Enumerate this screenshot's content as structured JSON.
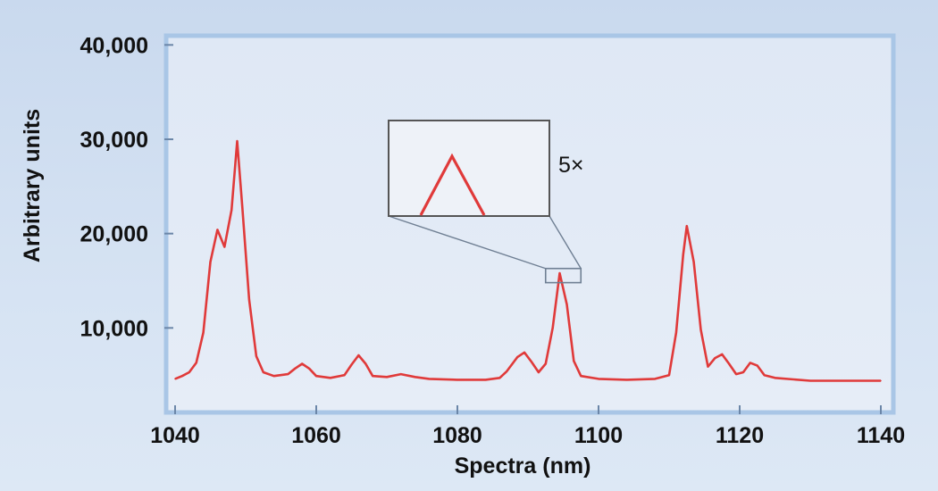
{
  "chart_data": {
    "type": "line",
    "title": "",
    "xlabel": "Spectra (nm)",
    "ylabel": "Arbitrary units",
    "xlim": [
      1040,
      1140
    ],
    "ylim": [
      0,
      40000
    ],
    "x_ticks": [
      1040,
      1060,
      1080,
      1100,
      1120,
      1140
    ],
    "x_tick_labels": [
      "1040",
      "1060",
      "1080",
      "1100",
      "1120",
      "1140"
    ],
    "y_ticks": [
      10000,
      20000,
      30000,
      40000
    ],
    "y_tick_labels": [
      "10,000",
      "20,000",
      "30,000",
      "40,000"
    ],
    "grid": false,
    "legend": "none",
    "annotation": {
      "label": "5×",
      "zoom_x": [
        1092.5,
        1097.5
      ],
      "zoom_y": [
        14800,
        16300
      ]
    },
    "colors": {
      "line": "#e03a3a",
      "plot_bg": "#dbe6f4",
      "frame": "#a9c6e6"
    },
    "series": [
      {
        "values": [
          [
            1040,
            4600
          ],
          [
            1041,
            4900
          ],
          [
            1042,
            5300
          ],
          [
            1043,
            6300
          ],
          [
            1044,
            9500
          ],
          [
            1045,
            17000
          ],
          [
            1046,
            20400
          ],
          [
            1047,
            18600
          ],
          [
            1048,
            22500
          ],
          [
            1048.8,
            29800
          ],
          [
            1049.5,
            23000
          ],
          [
            1050.5,
            13000
          ],
          [
            1051.5,
            7000
          ],
          [
            1052.5,
            5300
          ],
          [
            1054,
            4900
          ],
          [
            1056,
            5100
          ],
          [
            1057,
            5700
          ],
          [
            1058,
            6200
          ],
          [
            1059,
            5700
          ],
          [
            1060,
            4900
          ],
          [
            1062,
            4700
          ],
          [
            1064,
            5000
          ],
          [
            1065,
            6100
          ],
          [
            1066,
            7100
          ],
          [
            1067,
            6200
          ],
          [
            1068,
            4900
          ],
          [
            1070,
            4800
          ],
          [
            1072,
            5100
          ],
          [
            1074,
            4800
          ],
          [
            1076,
            4600
          ],
          [
            1080,
            4500
          ],
          [
            1084,
            4500
          ],
          [
            1086,
            4700
          ],
          [
            1087,
            5400
          ],
          [
            1088.5,
            6900
          ],
          [
            1089.5,
            7400
          ],
          [
            1090.5,
            6400
          ],
          [
            1091.5,
            5300
          ],
          [
            1092.5,
            6200
          ],
          [
            1093.5,
            10000
          ],
          [
            1094.5,
            15800
          ],
          [
            1095.5,
            12500
          ],
          [
            1096.5,
            6500
          ],
          [
            1097.5,
            4900
          ],
          [
            1100,
            4600
          ],
          [
            1104,
            4500
          ],
          [
            1108,
            4600
          ],
          [
            1110,
            5000
          ],
          [
            1111,
            9500
          ],
          [
            1112,
            17800
          ],
          [
            1112.5,
            20800
          ],
          [
            1113.5,
            17000
          ],
          [
            1114.5,
            9800
          ],
          [
            1115.5,
            5900
          ],
          [
            1116.5,
            6800
          ],
          [
            1117.5,
            7200
          ],
          [
            1118.5,
            6200
          ],
          [
            1119.5,
            5100
          ],
          [
            1120.5,
            5300
          ],
          [
            1121.5,
            6300
          ],
          [
            1122.5,
            6000
          ],
          [
            1123.5,
            5000
          ],
          [
            1125,
            4700
          ],
          [
            1130,
            4400
          ],
          [
            1135,
            4400
          ],
          [
            1140,
            4400
          ]
        ]
      }
    ]
  }
}
